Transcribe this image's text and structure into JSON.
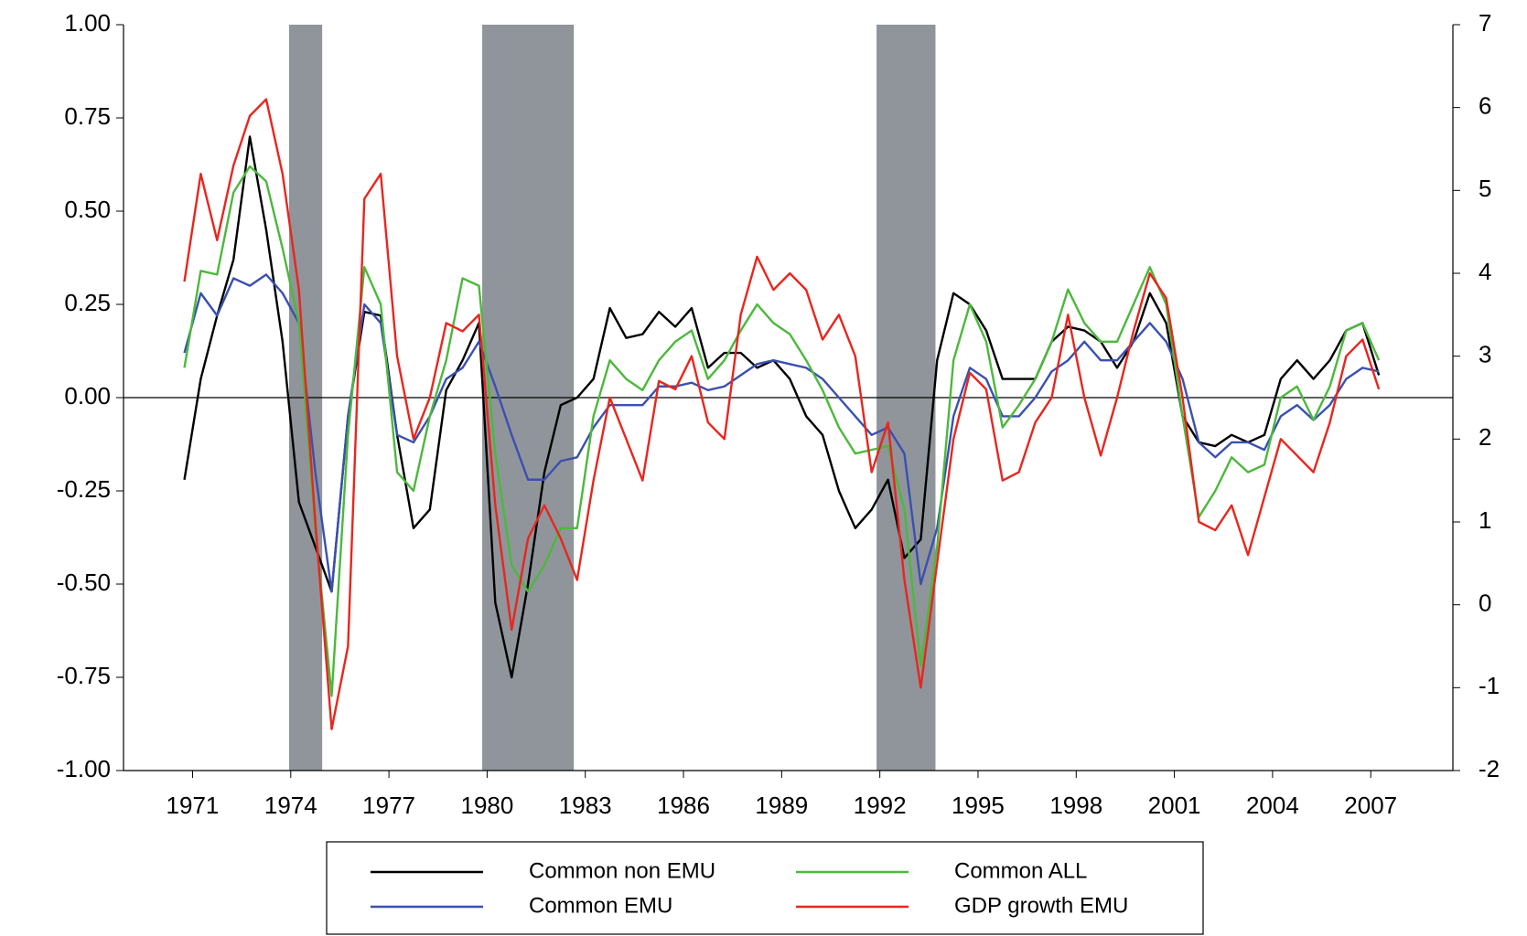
{
  "chart_data": {
    "type": "line",
    "x": [
      1970.75,
      1971.25,
      1971.75,
      1972.25,
      1972.75,
      1973.25,
      1973.75,
      1974.25,
      1974.75,
      1975.25,
      1975.75,
      1976.25,
      1976.75,
      1977.25,
      1977.75,
      1978.25,
      1978.75,
      1979.25,
      1979.75,
      1980.25,
      1980.75,
      1981.25,
      1981.75,
      1982.25,
      1982.75,
      1983.25,
      1983.75,
      1984.25,
      1984.75,
      1985.25,
      1985.75,
      1986.25,
      1986.75,
      1987.25,
      1987.75,
      1988.25,
      1988.75,
      1989.25,
      1989.75,
      1990.25,
      1990.75,
      1991.25,
      1991.75,
      1992.25,
      1992.75,
      1993.25,
      1993.75,
      1994.25,
      1994.75,
      1995.25,
      1995.75,
      1996.25,
      1996.75,
      1997.25,
      1997.75,
      1998.25,
      1998.75,
      1999.25,
      1999.75,
      2000.25,
      2000.75,
      2001.25,
      2001.75,
      2002.25,
      2002.75,
      2003.25,
      2003.75,
      2004.25,
      2004.75,
      2005.25,
      2005.75,
      2006.25,
      2006.75,
      2007.25
    ],
    "series": [
      {
        "name": "Common non EMU",
        "color": "#000000",
        "values": [
          -0.22,
          0.05,
          0.22,
          0.37,
          0.7,
          0.45,
          0.15,
          -0.28,
          -0.4,
          -0.52,
          -0.05,
          0.23,
          0.22,
          -0.1,
          -0.35,
          -0.3,
          0.02,
          0.1,
          0.2,
          -0.55,
          -0.75,
          -0.5,
          -0.2,
          -0.02,
          0.0,
          0.05,
          0.24,
          0.16,
          0.17,
          0.23,
          0.19,
          0.24,
          0.08,
          0.12,
          0.12,
          0.08,
          0.1,
          0.05,
          -0.05,
          -0.1,
          -0.25,
          -0.35,
          -0.3,
          -0.22,
          -0.43,
          -0.38,
          0.1,
          0.28,
          0.25,
          0.18,
          0.05,
          0.05,
          0.05,
          0.15,
          0.19,
          0.18,
          0.15,
          0.08,
          0.15,
          0.28,
          0.2,
          -0.05,
          -0.12,
          -0.13,
          -0.1,
          -0.12,
          -0.1,
          0.05,
          0.1,
          0.05,
          0.1,
          0.18,
          0.2,
          0.06
        ]
      },
      {
        "name": "Common EMU",
        "color": "#3a50b0",
        "values": [
          0.12,
          0.28,
          0.22,
          0.32,
          0.3,
          0.33,
          0.28,
          0.2,
          -0.2,
          -0.52,
          -0.05,
          0.25,
          0.2,
          -0.1,
          -0.12,
          -0.05,
          0.05,
          0.08,
          0.15,
          0.03,
          -0.1,
          -0.22,
          -0.22,
          -0.17,
          -0.16,
          -0.08,
          -0.02,
          -0.02,
          -0.02,
          0.03,
          0.03,
          0.04,
          0.02,
          0.03,
          0.06,
          0.09,
          0.1,
          0.09,
          0.08,
          0.05,
          0.0,
          -0.05,
          -0.1,
          -0.08,
          -0.15,
          -0.5,
          -0.35,
          -0.05,
          0.08,
          0.05,
          -0.05,
          -0.05,
          0.0,
          0.07,
          0.1,
          0.15,
          0.1,
          0.1,
          0.15,
          0.2,
          0.15,
          0.05,
          -0.12,
          -0.16,
          -0.12,
          -0.12,
          -0.14,
          -0.05,
          -0.02,
          -0.06,
          -0.02,
          0.05,
          0.08,
          0.07
        ]
      },
      {
        "name": "Common ALL",
        "color": "#4cb83c",
        "values": [
          0.08,
          0.34,
          0.33,
          0.55,
          0.62,
          0.58,
          0.4,
          0.2,
          -0.35,
          -0.8,
          -0.1,
          0.35,
          0.25,
          -0.2,
          -0.25,
          -0.05,
          0.1,
          0.32,
          0.3,
          -0.15,
          -0.45,
          -0.52,
          -0.45,
          -0.35,
          -0.35,
          -0.05,
          0.1,
          0.05,
          0.02,
          0.1,
          0.15,
          0.18,
          0.05,
          0.1,
          0.18,
          0.25,
          0.2,
          0.17,
          0.1,
          0.02,
          -0.08,
          -0.15,
          -0.14,
          -0.13,
          -0.3,
          -0.72,
          -0.4,
          0.1,
          0.25,
          0.15,
          -0.08,
          -0.02,
          0.05,
          0.15,
          0.29,
          0.2,
          0.15,
          0.15,
          0.25,
          0.35,
          0.25,
          -0.05,
          -0.32,
          -0.25,
          -0.16,
          -0.2,
          -0.18,
          0.0,
          0.03,
          -0.06,
          0.03,
          0.18,
          0.2,
          0.1
        ]
      },
      {
        "name": "GDP growth EMU",
        "color": "#e8261e",
        "axis": "y2",
        "values": [
          3.9,
          5.2,
          4.4,
          5.3,
          5.9,
          6.1,
          5.2,
          3.8,
          1.0,
          -1.5,
          -0.5,
          4.9,
          5.2,
          3.0,
          2.0,
          2.5,
          3.4,
          3.3,
          3.5,
          1.2,
          -0.3,
          0.8,
          1.2,
          0.8,
          0.3,
          1.5,
          2.5,
          2.0,
          1.5,
          2.7,
          2.6,
          3.0,
          2.2,
          2.0,
          3.5,
          4.2,
          3.8,
          4.0,
          3.8,
          3.2,
          3.5,
          3.0,
          1.6,
          2.2,
          0.3,
          -1.0,
          0.5,
          2.0,
          2.8,
          2.6,
          1.5,
          1.6,
          2.2,
          2.5,
          3.5,
          2.5,
          1.8,
          2.5,
          3.3,
          4.0,
          3.7,
          2.5,
          1.0,
          0.9,
          1.2,
          0.6,
          1.3,
          2.0,
          1.8,
          1.6,
          2.2,
          3.0,
          3.2,
          2.6
        ]
      }
    ],
    "recessions": [
      [
        1973.95,
        1974.96
      ],
      [
        1979.85,
        1982.65
      ],
      [
        1991.9,
        1993.7
      ]
    ],
    "recession_color": "#90959b",
    "xlim": [
      1968.89,
      2009.51
    ],
    "xticks": [
      1971,
      1974,
      1977,
      1980,
      1983,
      1986,
      1989,
      1992,
      1995,
      1998,
      2001,
      2004,
      2007
    ],
    "ylim": [
      -1,
      1
    ],
    "yticks": [
      {
        "value": -1,
        "label": "-1.00"
      },
      {
        "value": -0.75,
        "label": "-0.75"
      },
      {
        "value": -0.5,
        "label": "-0.50"
      },
      {
        "value": -0.25,
        "label": "-0.25"
      },
      {
        "value": 0,
        "label": "0.00"
      },
      {
        "value": 0.25,
        "label": "0.25"
      },
      {
        "value": 0.5,
        "label": "0.50"
      },
      {
        "value": 0.75,
        "label": "0.75"
      },
      {
        "value": 1,
        "label": "1.00"
      }
    ],
    "y2lim": [
      -2,
      7
    ],
    "y2ticks": [
      -2,
      -1,
      0,
      1,
      2,
      3,
      4,
      5,
      6,
      7
    ]
  }
}
